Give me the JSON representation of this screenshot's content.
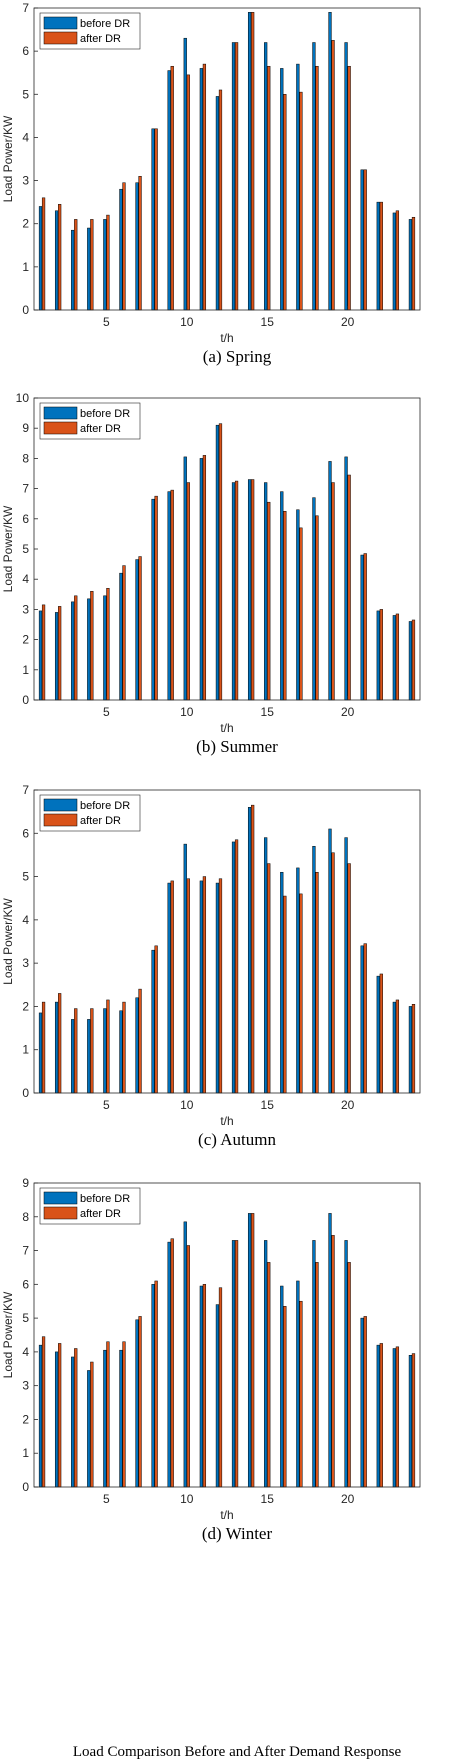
{
  "figure_caption": "Load Comparison Before and After Demand Response",
  "colors": {
    "before": "#0072BD",
    "after": "#D95319"
  },
  "chart_data": [
    {
      "type": "bar",
      "caption": "(a)     Spring",
      "xlabel": "t/h",
      "ylabel": "Load Power/KW",
      "ylim": [
        0,
        7
      ],
      "yticks": [
        0,
        1,
        2,
        3,
        4,
        5,
        6,
        7
      ],
      "xticks": [
        5,
        10,
        15,
        20
      ],
      "xlim": [
        0.5,
        24.5
      ],
      "legend": "top-left",
      "categories": [
        1,
        2,
        3,
        4,
        5,
        6,
        7,
        8,
        9,
        10,
        11,
        12,
        13,
        14,
        15,
        16,
        17,
        18,
        19,
        20,
        21,
        22,
        23,
        24
      ],
      "series": [
        {
          "name": "before DR",
          "values": [
            2.4,
            2.3,
            1.85,
            1.9,
            2.1,
            2.8,
            2.95,
            4.2,
            5.55,
            6.3,
            5.6,
            4.95,
            6.2,
            6.9,
            6.2,
            5.6,
            5.7,
            6.2,
            6.9,
            6.2,
            3.25,
            2.5,
            2.25,
            2.1
          ]
        },
        {
          "name": "after DR",
          "values": [
            2.6,
            2.45,
            2.1,
            2.1,
            2.2,
            2.95,
            3.1,
            4.2,
            5.65,
            5.45,
            5.7,
            5.1,
            6.2,
            6.9,
            5.65,
            5.0,
            5.05,
            5.65,
            6.25,
            5.65,
            3.25,
            2.5,
            2.3,
            2.15
          ]
        }
      ]
    },
    {
      "type": "bar",
      "caption": "(b)     Summer",
      "xlabel": "t/h",
      "ylabel": "Load Power/KW",
      "ylim": [
        0,
        10
      ],
      "yticks": [
        0,
        1,
        2,
        3,
        4,
        5,
        6,
        7,
        8,
        9,
        10
      ],
      "xticks": [
        5,
        10,
        15,
        20
      ],
      "xlim": [
        0.5,
        24.5
      ],
      "legend": "top-left",
      "categories": [
        1,
        2,
        3,
        4,
        5,
        6,
        7,
        8,
        9,
        10,
        11,
        12,
        13,
        14,
        15,
        16,
        17,
        18,
        19,
        20,
        21,
        22,
        23,
        24
      ],
      "series": [
        {
          "name": "before DR",
          "values": [
            2.95,
            2.9,
            3.25,
            3.35,
            3.45,
            4.2,
            4.65,
            6.65,
            6.9,
            8.05,
            8.0,
            9.1,
            7.2,
            7.3,
            7.2,
            6.9,
            6.3,
            6.7,
            7.9,
            8.05,
            4.8,
            2.95,
            2.8,
            2.6
          ]
        },
        {
          "name": "after DR",
          "values": [
            3.15,
            3.1,
            3.45,
            3.6,
            3.7,
            4.45,
            4.75,
            6.75,
            6.95,
            7.2,
            8.1,
            9.15,
            7.25,
            7.3,
            6.55,
            6.25,
            5.7,
            6.1,
            7.2,
            7.45,
            4.85,
            3.0,
            2.85,
            2.65
          ]
        }
      ]
    },
    {
      "type": "bar",
      "caption": "(c)     Autumn",
      "xlabel": "t/h",
      "ylabel": "Load Power/KW",
      "ylim": [
        0,
        7
      ],
      "yticks": [
        0,
        1,
        2,
        3,
        4,
        5,
        6,
        7
      ],
      "xticks": [
        5,
        10,
        15,
        20
      ],
      "xlim": [
        0.5,
        24.5
      ],
      "legend": "top-left",
      "categories": [
        1,
        2,
        3,
        4,
        5,
        6,
        7,
        8,
        9,
        10,
        11,
        12,
        13,
        14,
        15,
        16,
        17,
        18,
        19,
        20,
        21,
        22,
        23,
        24
      ],
      "series": [
        {
          "name": "before DR",
          "values": [
            1.85,
            2.1,
            1.7,
            1.7,
            1.95,
            1.9,
            2.2,
            3.3,
            4.85,
            5.75,
            4.9,
            4.85,
            5.8,
            6.6,
            5.9,
            5.1,
            5.2,
            5.7,
            6.1,
            5.9,
            3.4,
            2.7,
            2.1,
            2.0
          ]
        },
        {
          "name": "after DR",
          "values": [
            2.1,
            2.3,
            1.95,
            1.95,
            2.15,
            2.1,
            2.4,
            3.4,
            4.9,
            4.95,
            5.0,
            4.95,
            5.85,
            6.65,
            5.3,
            4.55,
            4.6,
            5.1,
            5.55,
            5.3,
            3.45,
            2.75,
            2.15,
            2.05
          ]
        }
      ]
    },
    {
      "type": "bar",
      "caption": "(d)     Winter",
      "xlabel": "t/h",
      "ylabel": "Load Power/KW",
      "ylim": [
        0,
        9
      ],
      "yticks": [
        0,
        1,
        2,
        3,
        4,
        5,
        6,
        7,
        8,
        9
      ],
      "xticks": [
        5,
        10,
        15,
        20
      ],
      "xlim": [
        0.5,
        24.5
      ],
      "legend": "top-left",
      "categories": [
        1,
        2,
        3,
        4,
        5,
        6,
        7,
        8,
        9,
        10,
        11,
        12,
        13,
        14,
        15,
        16,
        17,
        18,
        19,
        20,
        21,
        22,
        23,
        24
      ],
      "series": [
        {
          "name": "before DR",
          "values": [
            4.2,
            4.0,
            3.85,
            3.45,
            4.05,
            4.05,
            4.95,
            6.0,
            7.25,
            7.85,
            5.95,
            5.4,
            7.3,
            8.1,
            7.3,
            5.95,
            6.1,
            7.3,
            8.1,
            7.3,
            5.0,
            4.2,
            4.1,
            3.9
          ]
        },
        {
          "name": "after DR",
          "values": [
            4.45,
            4.25,
            4.1,
            3.7,
            4.3,
            4.3,
            5.05,
            6.1,
            7.35,
            7.15,
            6.0,
            5.9,
            7.3,
            8.1,
            6.65,
            5.35,
            5.5,
            6.65,
            7.45,
            6.65,
            5.05,
            4.25,
            4.15,
            3.95
          ]
        }
      ]
    }
  ]
}
